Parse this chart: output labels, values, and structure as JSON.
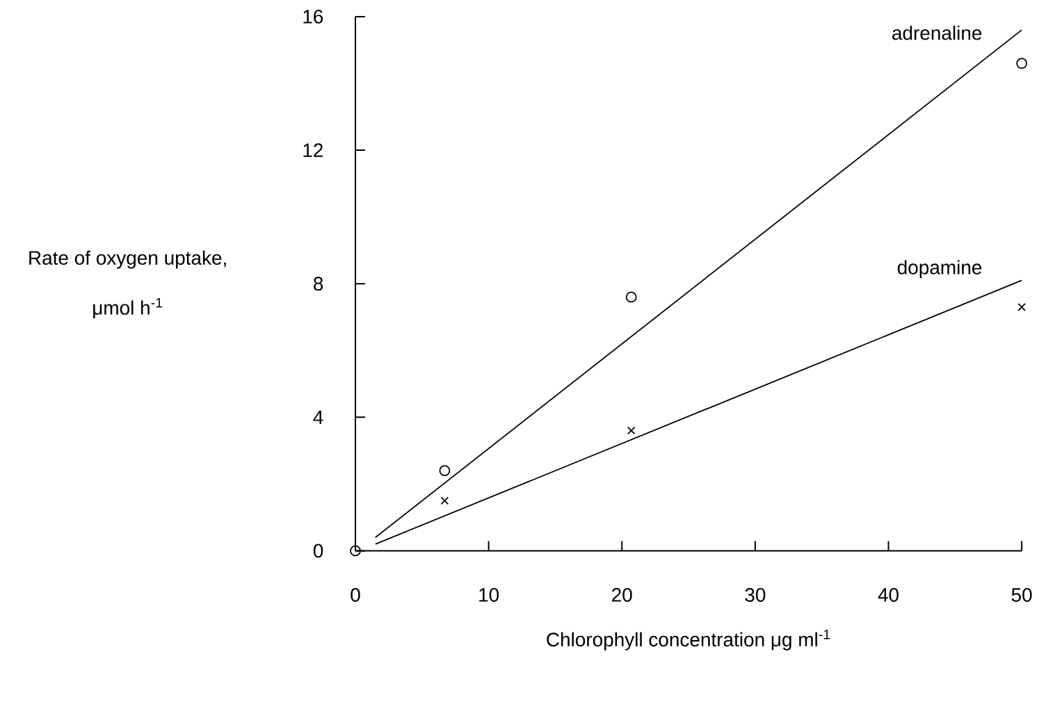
{
  "chart_data": {
    "type": "scatter",
    "xlabel": "Chlorophyll concentration μg ml$^{-1}$",
    "ylabel": "Rate of oxygen uptake, μmol h$^{-1}$",
    "xlim": [
      0,
      50
    ],
    "ylim": [
      0,
      16
    ],
    "xticks": [
      0,
      10,
      20,
      30,
      40,
      50
    ],
    "yticks": [
      0,
      4,
      8,
      12,
      16
    ],
    "series": [
      {
        "name": "adrenaline",
        "type": "line",
        "color": "#000000",
        "x": [
          1.5,
          50
        ],
        "values": [
          0.4,
          15.6
        ],
        "marker": "none"
      },
      {
        "color": "#000000",
        "x": [
          0,
          6.7,
          20.7,
          50
        ],
        "values": [
          0,
          2.4,
          7.6,
          14.6
        ],
        "marker": "circle"
      },
      {
        "name": "dopamine",
        "type": "line",
        "color": "#000000",
        "x": [
          1.5,
          50
        ],
        "values": [
          0.2,
          8.1
        ],
        "marker": "none"
      },
      {
        "color": "#000000",
        "x": [
          6.7,
          20.7,
          50
        ],
        "values": [
          1.5,
          3.6,
          7.3
        ],
        "marker": "cross"
      }
    ]
  }
}
